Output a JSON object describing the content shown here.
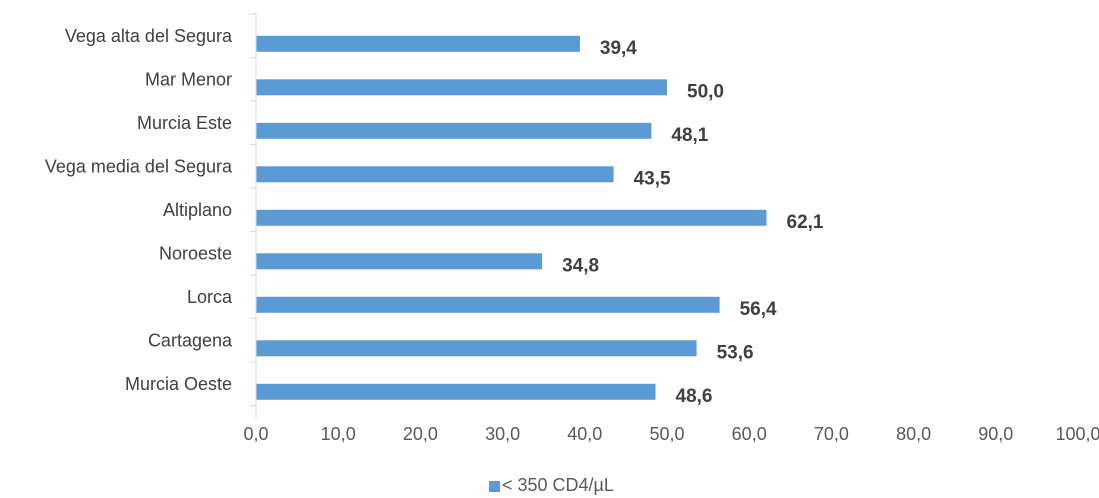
{
  "chart_data": {
    "type": "bar",
    "orientation": "horizontal",
    "categories": [
      "Vega alta del Segura",
      "Mar Menor",
      "Murcia Este",
      "Vega media del Segura",
      "Altiplano",
      "Noroeste",
      "Lorca",
      "Cartagena",
      "Murcia Oeste"
    ],
    "series": [
      {
        "name": "< 350 CD4/µL",
        "values": [
          39.4,
          50.0,
          48.1,
          43.5,
          62.1,
          34.8,
          56.4,
          53.6,
          48.6
        ],
        "labels": [
          "39,4",
          "50,0",
          "48,1",
          "43,5",
          "62,1",
          "34,8",
          "56,4",
          "53,6",
          "48,6"
        ],
        "color": "#5B9BD5"
      }
    ],
    "xlim": [
      0,
      100
    ],
    "xticks": [
      0,
      10,
      20,
      30,
      40,
      50,
      60,
      70,
      80,
      90,
      100
    ],
    "xtick_labels": [
      "0,0",
      "10,0",
      "20,0",
      "30,0",
      "40,0",
      "50,0",
      "60,0",
      "70,0",
      "80,0",
      "90,0",
      "100,0"
    ],
    "title": "",
    "xlabel": "",
    "ylabel": "",
    "grid": false,
    "legend_position": "bottom",
    "axis_color": "#D9D9D9"
  }
}
